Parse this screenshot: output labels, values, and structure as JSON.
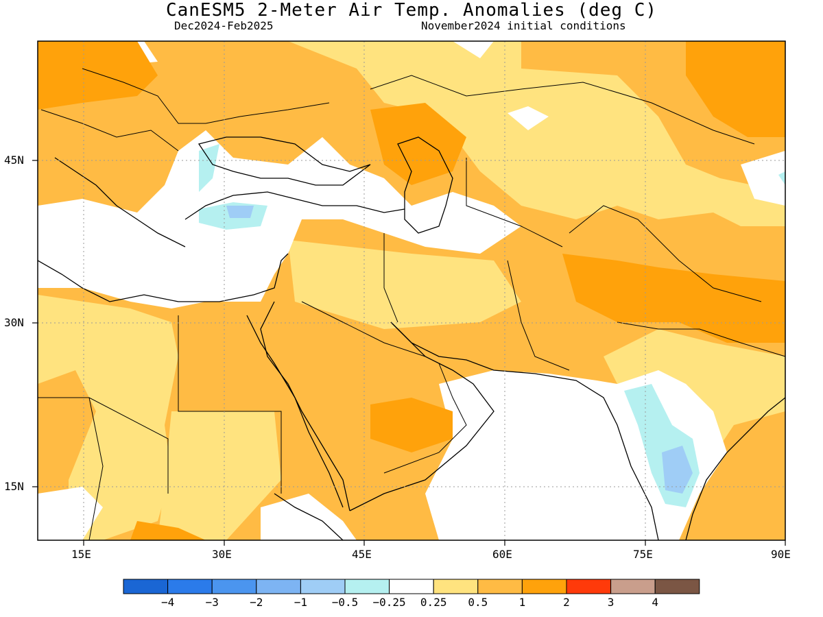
{
  "title": "CanESM5 2-Meter Air Temp. Anomalies (deg C)",
  "season": "Dec2024-Feb2025",
  "initial_conditions": "November2024 initial conditions",
  "lon_ticks": [
    "15E",
    "30E",
    "45E",
    "60E",
    "75E",
    "90E"
  ],
  "lat_ticks": [
    "45N",
    "30N",
    "15N"
  ],
  "colorbar": {
    "colors": [
      "#1a66d4",
      "#2b7bea",
      "#4b95ef",
      "#7db4f3",
      "#9fcdf6",
      "#b5f0f0",
      "#ffffff",
      "#ffe37f",
      "#ffbb44",
      "#ffa20b",
      "#ff3a0a",
      "#c99e8c",
      "#7b5644"
    ],
    "labels": [
      "-4",
      "-3",
      "-2",
      "-1",
      "-0.5",
      "-0.25",
      "0.25",
      "0.5",
      "1",
      "2",
      "3",
      "4"
    ]
  }
}
